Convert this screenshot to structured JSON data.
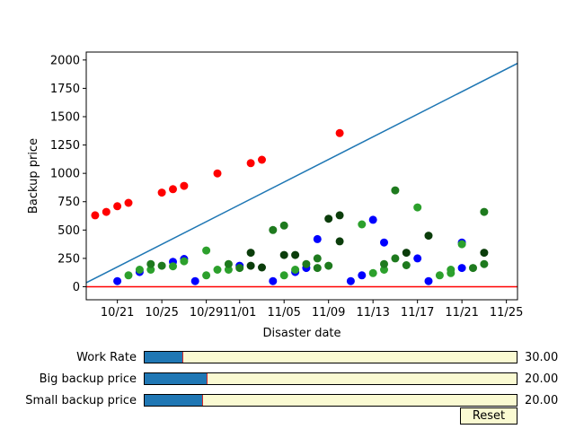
{
  "chart_data": {
    "type": "scatter",
    "title": "",
    "xlabel": "Disaster date",
    "ylabel": "Backup price",
    "x_ticks": [
      "10/21",
      "10/25",
      "10/29",
      "11/01",
      "11/05",
      "11/09",
      "11/13",
      "11/17",
      "11/21",
      "11/25"
    ],
    "x_tick_dates": [
      "10-21",
      "10-25",
      "10-29",
      "11-01",
      "11-05",
      "11-09",
      "11-13",
      "11-17",
      "11-21",
      "11-25"
    ],
    "x_range": [
      "10-18.2",
      "11-26"
    ],
    "y_ticks": [
      0,
      250,
      500,
      750,
      1000,
      1250,
      1500,
      1750,
      2000
    ],
    "ylim": [
      -115,
      2070
    ],
    "grid": false,
    "lines": [
      {
        "color": "#1f77b4",
        "points": [
          [
            "10-18",
            25
          ],
          [
            "11-26",
            1970
          ]
        ]
      },
      {
        "color": "#ff0000",
        "points": [
          [
            "10-18",
            0
          ],
          [
            "11-26",
            0
          ]
        ]
      }
    ],
    "series": [
      {
        "color": "#ff0000",
        "points": [
          [
            "10-19",
            630
          ],
          [
            "10-20",
            660
          ],
          [
            "10-21",
            710
          ],
          [
            "10-22",
            740
          ],
          [
            "10-25",
            830
          ],
          [
            "10-26",
            860
          ],
          [
            "10-27",
            890
          ],
          [
            "10-30",
            1000
          ],
          [
            "11-02",
            1090
          ],
          [
            "11-03",
            1120
          ],
          [
            "11-10",
            1355
          ]
        ]
      },
      {
        "color": "#0000ff",
        "points": [
          [
            "10-21",
            50
          ],
          [
            "10-23",
            130
          ],
          [
            "10-26",
            220
          ],
          [
            "10-27",
            245
          ],
          [
            "10-28",
            50
          ],
          [
            "11-01",
            185
          ],
          [
            "11-04",
            50
          ],
          [
            "11-06",
            130
          ],
          [
            "11-07",
            165
          ],
          [
            "11-08",
            420
          ],
          [
            "11-11",
            50
          ],
          [
            "11-12",
            100
          ],
          [
            "11-13",
            590
          ],
          [
            "11-14",
            390
          ],
          [
            "11-17",
            250
          ],
          [
            "11-18",
            50
          ],
          [
            "11-21",
            390
          ],
          [
            "11-21",
            165
          ]
        ]
      },
      {
        "color": "#2ca02c",
        "points": [
          [
            "10-22",
            100
          ],
          [
            "10-23",
            150
          ],
          [
            "10-24",
            150
          ],
          [
            "10-26",
            180
          ],
          [
            "10-27",
            225
          ],
          [
            "10-29",
            320
          ],
          [
            "10-29",
            100
          ],
          [
            "10-30",
            150
          ],
          [
            "10-31",
            150
          ],
          [
            "11-05",
            100
          ],
          [
            "11-06",
            150
          ],
          [
            "11-12",
            550
          ],
          [
            "11-13",
            120
          ],
          [
            "11-14",
            150
          ],
          [
            "11-17",
            700
          ],
          [
            "11-19",
            100
          ],
          [
            "11-20",
            150
          ],
          [
            "11-20",
            120
          ],
          [
            "11-21",
            375
          ]
        ]
      },
      {
        "color": "#1e7a1e",
        "points": [
          [
            "10-24",
            200
          ],
          [
            "10-25",
            185
          ],
          [
            "10-31",
            200
          ],
          [
            "11-01",
            165
          ],
          [
            "11-04",
            500
          ],
          [
            "11-05",
            540
          ],
          [
            "11-07",
            200
          ],
          [
            "11-08",
            250
          ],
          [
            "11-08",
            165
          ],
          [
            "11-09",
            185
          ],
          [
            "11-14",
            200
          ],
          [
            "11-15",
            850
          ],
          [
            "11-15",
            250
          ],
          [
            "11-16",
            190
          ],
          [
            "11-22",
            165
          ],
          [
            "11-23",
            200
          ],
          [
            "11-23",
            660
          ]
        ]
      },
      {
        "color": "#0b3d0b",
        "points": [
          [
            "11-02",
            300
          ],
          [
            "11-02",
            185
          ],
          [
            "11-03",
            170
          ],
          [
            "11-05",
            280
          ],
          [
            "11-06",
            280
          ],
          [
            "11-09",
            600
          ],
          [
            "11-10",
            630
          ],
          [
            "11-10",
            400
          ],
          [
            "11-16",
            300
          ],
          [
            "11-18",
            450
          ],
          [
            "11-23",
            300
          ]
        ]
      }
    ]
  },
  "sliders": [
    {
      "label": "Work Rate",
      "value": 30.0,
      "value_text": "30.00",
      "fraction": 0.101
    },
    {
      "label": "Big backup price",
      "value": 20.0,
      "value_text": "20.00",
      "fraction": 0.167
    },
    {
      "label": "Small backup price",
      "value": 20.0,
      "value_text": "20.00",
      "fraction": 0.154
    }
  ],
  "reset_button": {
    "label": "Reset"
  }
}
